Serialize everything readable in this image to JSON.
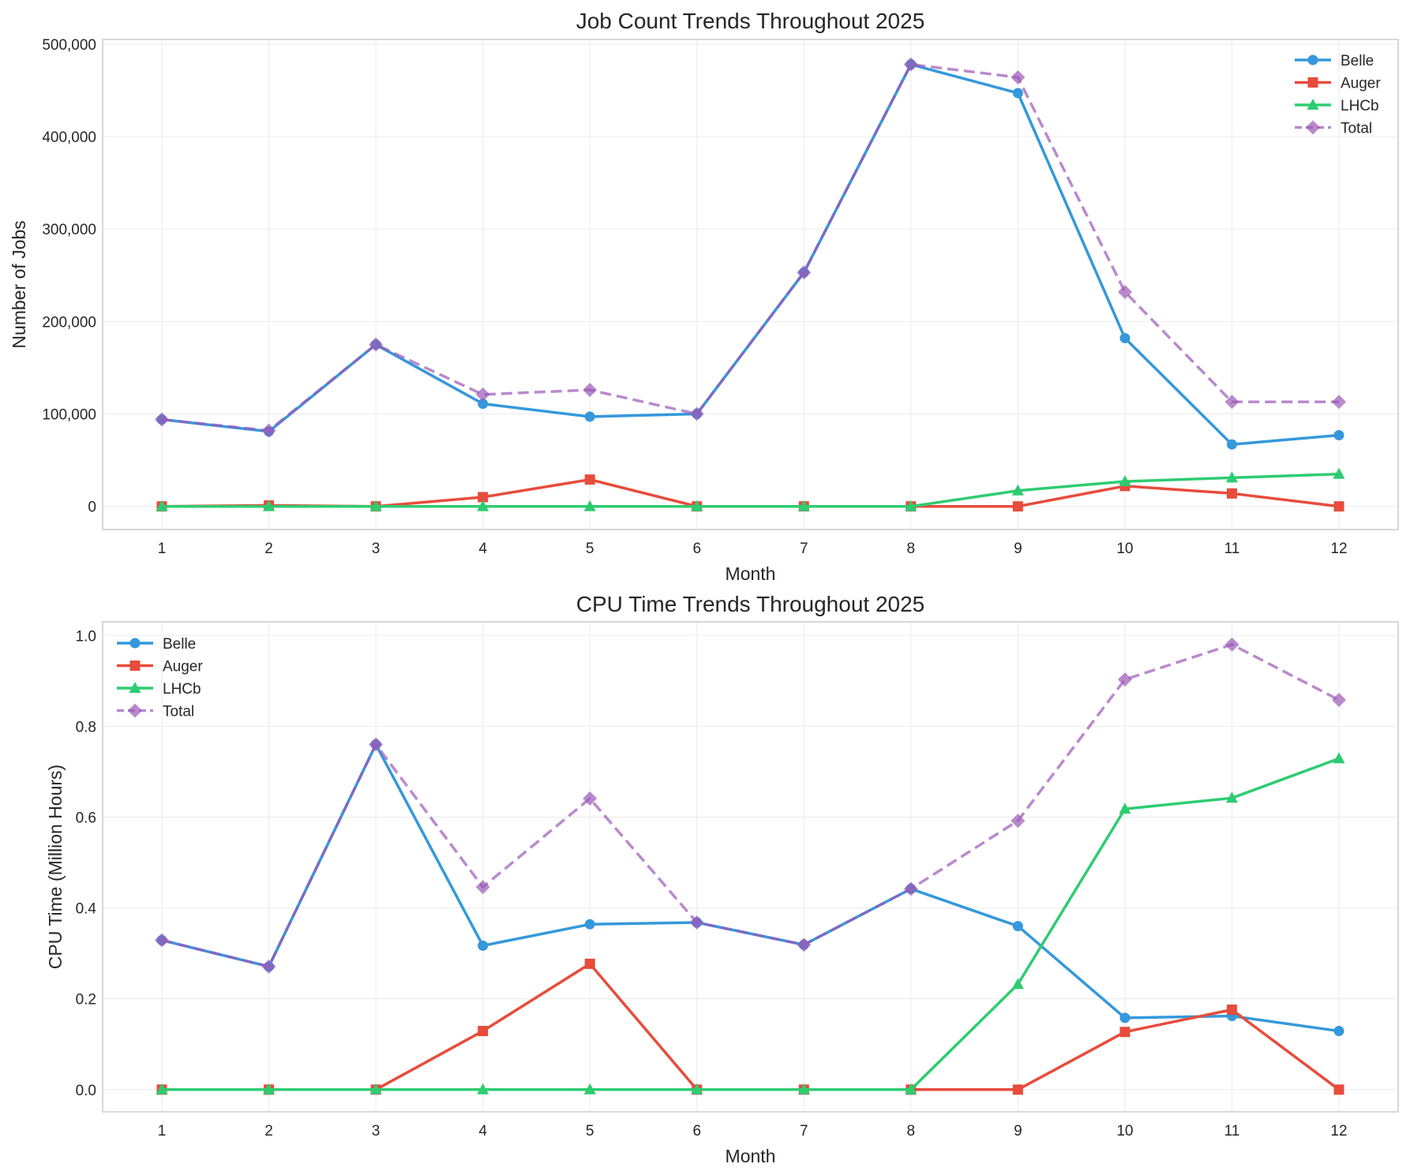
{
  "chart_data": [
    {
      "type": "line",
      "title": "Job Count Trends Throughout 2025",
      "xlabel": "Month",
      "ylabel": "Number of Jobs",
      "x": [
        1,
        2,
        3,
        4,
        5,
        6,
        7,
        8,
        9,
        10,
        11,
        12
      ],
      "ylim": [
        -25000,
        505000
      ],
      "yticks": [
        0,
        100000,
        200000,
        300000,
        400000,
        500000
      ],
      "ytick_labels": [
        "0",
        "100,000",
        "200,000",
        "300,000",
        "400,000",
        "500,000"
      ],
      "grid": true,
      "legend_position": "top-right",
      "series": [
        {
          "name": "Belle",
          "color": "#3498db",
          "marker": "circle",
          "dashed": false,
          "values": [
            94000,
            81000,
            175000,
            111000,
            97000,
            100000,
            253000,
            478000,
            447000,
            182000,
            67000,
            77000
          ]
        },
        {
          "name": "Auger",
          "color": "#e74c3c",
          "marker": "square",
          "dashed": false,
          "values": [
            0,
            1000,
            0,
            10000,
            29000,
            0,
            0,
            0,
            0,
            22000,
            14000,
            0
          ]
        },
        {
          "name": "LHCb",
          "color": "#2ecc71",
          "marker": "triangle",
          "dashed": false,
          "values": [
            0,
            0,
            0,
            0,
            0,
            0,
            0,
            0,
            17000,
            27000,
            31000,
            35000
          ]
        },
        {
          "name": "Total",
          "color": "#9b59b6",
          "marker": "diamond",
          "dashed": true,
          "values": [
            94000,
            82000,
            175000,
            121000,
            126000,
            100000,
            253000,
            478000,
            464000,
            232000,
            113000,
            113000
          ]
        }
      ]
    },
    {
      "type": "line",
      "title": "CPU Time Trends Throughout 2025",
      "xlabel": "Month",
      "ylabel": "CPU Time (Million Hours)",
      "x": [
        1,
        2,
        3,
        4,
        5,
        6,
        7,
        8,
        9,
        10,
        11,
        12
      ],
      "ylim": [
        -0.049,
        1.03
      ],
      "yticks": [
        0,
        0.2,
        0.4,
        0.6,
        0.8,
        1.0
      ],
      "ytick_labels": [
        "0.0",
        "0.2",
        "0.4",
        "0.6",
        "0.8",
        "1.0"
      ],
      "grid": true,
      "legend_position": "top-left",
      "series": [
        {
          "name": "Belle",
          "color": "#3498db",
          "marker": "circle",
          "dashed": false,
          "values": [
            0.329,
            0.271,
            0.76,
            0.317,
            0.364,
            0.368,
            0.319,
            0.442,
            0.36,
            0.158,
            0.162,
            0.129
          ]
        },
        {
          "name": "Auger",
          "color": "#e74c3c",
          "marker": "square",
          "dashed": false,
          "values": [
            0,
            0,
            0,
            0.129,
            0.277,
            0,
            0,
            0,
            0,
            0.127,
            0.176,
            0
          ]
        },
        {
          "name": "LHCb",
          "color": "#2ecc71",
          "marker": "triangle",
          "dashed": false,
          "values": [
            0,
            0,
            0,
            0,
            0,
            0,
            0,
            0,
            0.232,
            0.618,
            0.642,
            0.729
          ]
        },
        {
          "name": "Total",
          "color": "#9b59b6",
          "marker": "diamond",
          "dashed": true,
          "values": [
            0.329,
            0.271,
            0.76,
            0.446,
            0.641,
            0.368,
            0.319,
            0.442,
            0.592,
            0.903,
            0.98,
            0.858
          ]
        }
      ]
    }
  ]
}
